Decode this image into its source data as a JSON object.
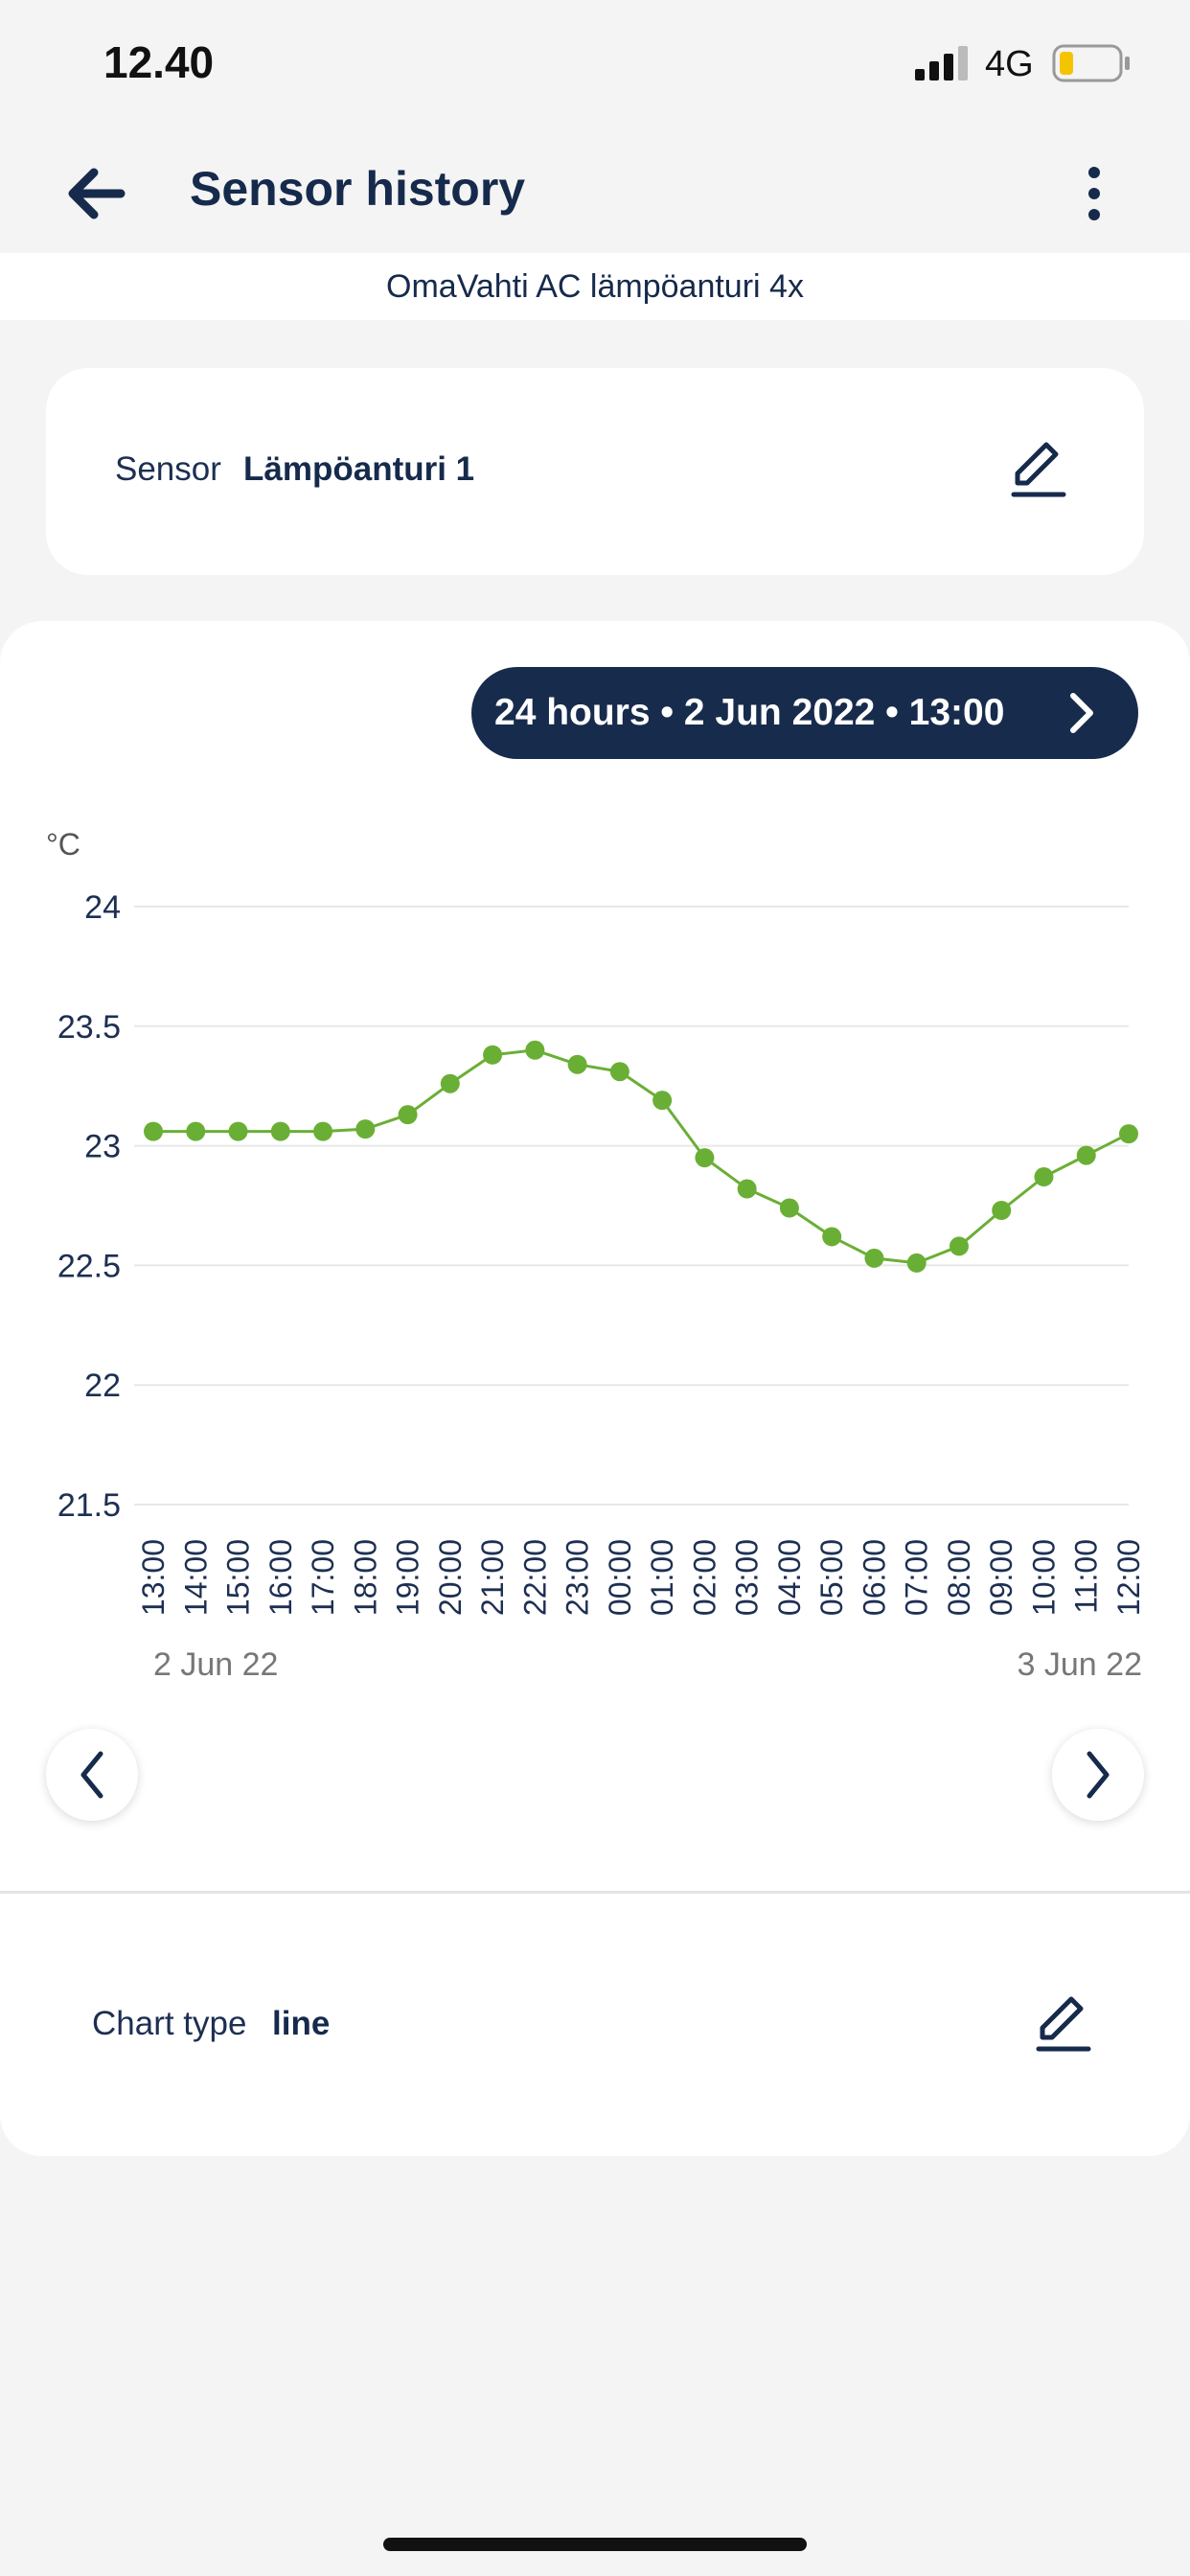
{
  "status_bar": {
    "time": "12.40",
    "network": "4G",
    "battery_color": "#f5c400"
  },
  "app_bar": {
    "title": "Sensor history",
    "back_icon": "arrow-left-icon",
    "menu_icon": "more-vertical-icon"
  },
  "device": {
    "name": "OmaVahti AC lämpöanturi 4x"
  },
  "sensor": {
    "label": "Sensor",
    "value": "Lämpöanturi 1",
    "edit_icon": "pencil-icon"
  },
  "range": {
    "label": "24 hours • 2 Jun 2022 • 13:00",
    "icon": "chevron-right-icon"
  },
  "chart_data": {
    "type": "line",
    "ylabel": "°C",
    "ylim": [
      21.5,
      24
    ],
    "yticks": [
      "24",
      "23.5",
      "23",
      "22.5",
      "22",
      "21.5"
    ],
    "ytick_values": [
      24,
      23.5,
      23,
      22.5,
      22,
      21.5
    ],
    "grid": true,
    "line_color": "#6aaf35",
    "categories": [
      "13:00",
      "14:00",
      "15:00",
      "16:00",
      "17:00",
      "18:00",
      "19:00",
      "20:00",
      "21:00",
      "22:00",
      "23:00",
      "00:00",
      "01:00",
      "02:00",
      "03:00",
      "04:00",
      "05:00",
      "06:00",
      "07:00",
      "08:00",
      "09:00",
      "10:00",
      "11:00",
      "12:00"
    ],
    "values": [
      23.06,
      23.06,
      23.06,
      23.06,
      23.06,
      23.07,
      23.13,
      23.26,
      23.38,
      23.4,
      23.34,
      23.31,
      23.19,
      22.95,
      22.82,
      22.74,
      22.62,
      22.53,
      22.51,
      22.58,
      22.73,
      22.87,
      22.96,
      23.05
    ],
    "date_start": "2 Jun 22",
    "date_end": "3 Jun 22"
  },
  "nav": {
    "prev_icon": "chevron-left-icon",
    "next_icon": "chevron-right-icon"
  },
  "chart_type": {
    "label": "Chart type",
    "value": "line",
    "edit_icon": "pencil-icon"
  }
}
